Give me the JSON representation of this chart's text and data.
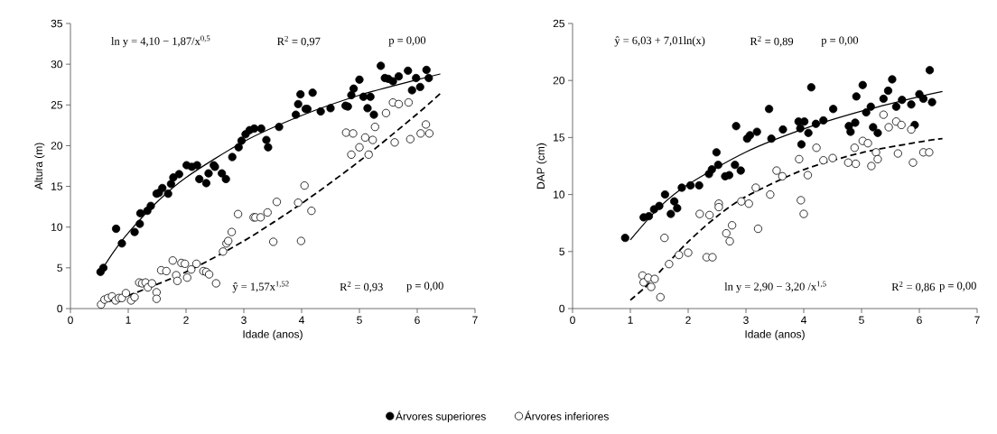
{
  "chart_data": [
    {
      "type": "scatter",
      "xlabel": "Idade (anos)",
      "ylabel": "Altura (m)",
      "xlim": [
        0,
        7
      ],
      "ylim": [
        0,
        35
      ],
      "xticks": [
        0,
        1,
        2,
        3,
        4,
        5,
        6,
        7
      ],
      "yticks": [
        0,
        5,
        10,
        15,
        20,
        25,
        30,
        35
      ],
      "grid": false,
      "legend": "bottom",
      "annotations": [
        "ln y = 4,10 − 1,87/x$^{0,5}$",
        "R$^{2}$ = 0,97",
        "p = 0,00",
        "ŷ = 1,57x$^{1,52}$",
        "R$^{2}$ = 0,93",
        "p = 0,00"
      ],
      "series": [
        {
          "name": "Árvores superiores",
          "type": "scatter",
          "marker": "circle",
          "color": "#000000",
          "x": [
            0.52,
            0.57,
            0.79,
            0.89,
            1.11,
            1.2,
            1.21,
            1.33,
            1.39,
            1.49,
            1.53,
            1.59,
            1.69,
            1.74,
            1.78,
            1.88,
            2.01,
            2.1,
            2.19,
            2.23,
            2.35,
            2.39,
            2.48,
            2.5,
            2.62,
            2.69,
            2.8,
            2.91,
            2.96,
            3.03,
            3.1,
            3.18,
            3.3,
            3.39,
            3.42,
            3.61,
            3.9,
            3.94,
            3.98,
            4.07,
            4.1,
            4.19,
            4.33,
            4.5,
            4.76,
            4.8,
            4.86,
            4.9,
            5.0,
            5.07,
            5.19,
            5.14,
            5.25,
            5.37,
            5.44,
            5.5,
            5.58,
            5.68,
            5.84,
            5.91,
            5.98,
            6.05,
            6.16,
            6.2
          ],
          "values": [
            4.5,
            5.0,
            9.8,
            8.0,
            9.4,
            10.4,
            11.7,
            12.0,
            12.6,
            14.1,
            14.2,
            14.8,
            14.1,
            15.3,
            16.1,
            16.5,
            17.6,
            17.4,
            17.6,
            15.9,
            15.4,
            16.6,
            17.6,
            17.4,
            16.6,
            15.9,
            18.6,
            19.8,
            20.6,
            21.4,
            21.9,
            22.1,
            22.1,
            20.7,
            19.8,
            22.3,
            23.8,
            25.1,
            26.3,
            24.5,
            24.5,
            26.5,
            24.2,
            24.6,
            24.9,
            24.8,
            26.2,
            27.0,
            28.1,
            26.0,
            26.0,
            24.6,
            23.8,
            29.8,
            28.3,
            28.2,
            27.9,
            28.5,
            29.2,
            26.8,
            28.3,
            27.2,
            29.3,
            28.3
          ]
        },
        {
          "name": "Árvores inferiores",
          "type": "scatter",
          "marker": "circle",
          "color": "#ffffff",
          "x": [
            0.53,
            0.59,
            0.65,
            0.72,
            0.78,
            0.84,
            0.89,
            0.96,
            1.05,
            1.11,
            1.19,
            1.24,
            1.3,
            1.34,
            1.41,
            1.49,
            1.49,
            1.57,
            1.66,
            1.77,
            1.83,
            1.85,
            1.92,
            1.98,
            2.02,
            2.09,
            2.18,
            2.3,
            2.35,
            2.4,
            2.52,
            2.64,
            2.7,
            2.73,
            2.79,
            2.9,
            3.17,
            3.2,
            3.29,
            3.41,
            3.51,
            3.57,
            3.94,
            3.99,
            4.05,
            4.17,
            4.77,
            4.86,
            4.89,
            5.0,
            5.1,
            5.16,
            5.23,
            5.27,
            5.46,
            5.58,
            5.61,
            5.68,
            5.85,
            5.88,
            6.06,
            6.15,
            6.21
          ],
          "values": [
            0.5,
            1.1,
            1.3,
            1.5,
            1.0,
            1.3,
            1.3,
            1.9,
            1.0,
            1.4,
            3.2,
            3.1,
            3.2,
            2.6,
            3.1,
            2.0,
            1.2,
            4.7,
            4.6,
            5.9,
            4.1,
            3.4,
            5.6,
            5.5,
            3.8,
            4.8,
            5.5,
            4.6,
            4.5,
            4.2,
            3.1,
            7.0,
            8.0,
            8.3,
            9.4,
            11.6,
            11.2,
            11.2,
            11.2,
            11.8,
            8.2,
            13.1,
            13.0,
            8.3,
            15.1,
            12.0,
            21.6,
            18.9,
            21.5,
            19.8,
            21.0,
            18.9,
            20.7,
            22.3,
            24.0,
            25.3,
            20.4,
            25.1,
            25.3,
            20.8,
            21.5,
            22.6,
            21.5
          ]
        },
        {
          "type": "line",
          "marker": "none",
          "line_style": "solid",
          "color": "#000000",
          "x": [
            0.5,
            0.75,
            1,
            1.5,
            2,
            3,
            4,
            5,
            6,
            6.4
          ],
          "values": [
            4.3,
            7.0,
            9.3,
            13.1,
            16.1,
            20.5,
            23.7,
            26.2,
            28.1,
            28.8
          ]
        },
        {
          "type": "line",
          "marker": "none",
          "line_style": "dashed",
          "color": "#000000",
          "x": [
            0.5,
            1,
            2,
            3,
            4,
            5,
            6,
            6.4
          ],
          "values": [
            0.6,
            1.6,
            4.5,
            8.3,
            12.9,
            18.1,
            23.9,
            26.4
          ]
        }
      ]
    },
    {
      "type": "scatter",
      "xlabel": "Idade (anos)",
      "ylabel": "DAP (cm)",
      "xlim": [
        0,
        7
      ],
      "ylim": [
        0,
        25
      ],
      "xticks": [
        0,
        1,
        2,
        3,
        4,
        5,
        6,
        7
      ],
      "yticks": [
        0,
        5,
        10,
        15,
        20,
        25
      ],
      "grid": false,
      "annotations": [
        "ŷ = 6,03 + 7,01ln(x)",
        "R$^{2}$ = 0,89",
        "p = 0,00",
        "ln y = 2,90 − 3,20 /x$^{1,5}$",
        "R$^{2}$ = 0,86",
        "p = 0,00"
      ],
      "series": [
        {
          "type": "scatter",
          "marker": "circle",
          "color": "#000000",
          "x": [
            0.91,
            1.23,
            1.32,
            1.37,
            1.41,
            1.5,
            1.6,
            1.7,
            1.76,
            1.81,
            1.89,
            2.04,
            2.19,
            2.36,
            2.41,
            2.49,
            2.52,
            2.64,
            2.71,
            2.81,
            2.83,
            2.91,
            3.02,
            3.07,
            3.19,
            3.4,
            3.44,
            3.64,
            3.91,
            3.94,
            3.96,
            4.01,
            4.08,
            4.13,
            4.21,
            4.34,
            4.51,
            4.78,
            4.81,
            4.89,
            4.91,
            5.02,
            5.08,
            5.16,
            5.2,
            5.28,
            5.38,
            5.46,
            5.53,
            5.6,
            5.7,
            5.86,
            5.92,
            6.0,
            6.07,
            6.18,
            6.22
          ],
          "values": [
            6.2,
            8.0,
            8.1,
            null,
            8.7,
            9.0,
            10.0,
            8.3,
            9.4,
            8.8,
            10.6,
            10.8,
            10.8,
            11.8,
            12.2,
            13.7,
            12.6,
            11.6,
            11.7,
            12.6,
            16.0,
            12.1,
            14.9,
            15.2,
            15.5,
            17.5,
            14.9,
            15.7,
            16.4,
            15.8,
            14.4,
            16.4,
            15.4,
            19.4,
            16.2,
            16.5,
            17.5,
            16.0,
            15.5,
            16.3,
            18.6,
            19.6,
            17.2,
            17.7,
            15.9,
            15.4,
            18.4,
            19.1,
            20.1,
            17.7,
            18.3,
            17.9,
            16.1,
            18.8,
            18.4,
            20.9,
            18.1
          ]
        },
        {
          "type": "scatter",
          "marker": "circle",
          "color": "#ffffff",
          "x": [
            1.21,
            1.23,
            1.31,
            1.36,
            1.42,
            1.52,
            1.59,
            1.67,
            1.84,
            2.0,
            2.2,
            2.32,
            2.37,
            2.42,
            2.53,
            2.53,
            2.66,
            2.72,
            2.76,
            2.92,
            3.05,
            3.17,
            3.21,
            3.42,
            3.53,
            3.63,
            3.91,
            3.92,
            3.95,
            4.0,
            4.07,
            4.22,
            4.34,
            4.5,
            4.77,
            4.88,
            4.9,
            5.02,
            5.11,
            5.17,
            5.25,
            5.28,
            5.38,
            5.47,
            5.6,
            5.63,
            5.69,
            5.86,
            5.89,
            6.07,
            6.17
          ],
          "values": [
            2.9,
            2.3,
            2.7,
            1.9,
            2.6,
            1.0,
            6.2,
            3.9,
            4.7,
            4.9,
            8.3,
            4.5,
            8.2,
            4.5,
            9.2,
            8.9,
            6.6,
            5.9,
            7.3,
            9.4,
            9.2,
            10.6,
            7.0,
            10.0,
            12.1,
            11.6,
            null,
            13.1,
            9.5,
            8.3,
            11.7,
            14.1,
            13.0,
            13.2,
            12.8,
            14.1,
            12.7,
            14.7,
            14.5,
            12.5,
            13.7,
            13.1,
            17.0,
            15.9,
            16.4,
            13.6,
            16.1,
            15.7,
            12.8,
            13.7,
            13.7
          ]
        },
        {
          "type": "line",
          "marker": "none",
          "line_style": "solid",
          "color": "#000000",
          "x": [
            1,
            1.5,
            2,
            3,
            4,
            5,
            6,
            6.4
          ],
          "values": [
            6.03,
            8.87,
            10.89,
            13.73,
            15.75,
            17.31,
            18.59,
            19.04
          ]
        },
        {
          "type": "line",
          "marker": "none",
          "line_style": "dashed",
          "color": "#000000",
          "x": [
            1,
            1.25,
            1.5,
            2,
            2.5,
            3,
            4,
            5,
            6,
            6.4
          ],
          "values": [
            0.74,
            1.84,
            3.18,
            5.86,
            8.09,
            9.82,
            12.18,
            13.66,
            14.61,
            14.91
          ]
        }
      ]
    }
  ]
}
